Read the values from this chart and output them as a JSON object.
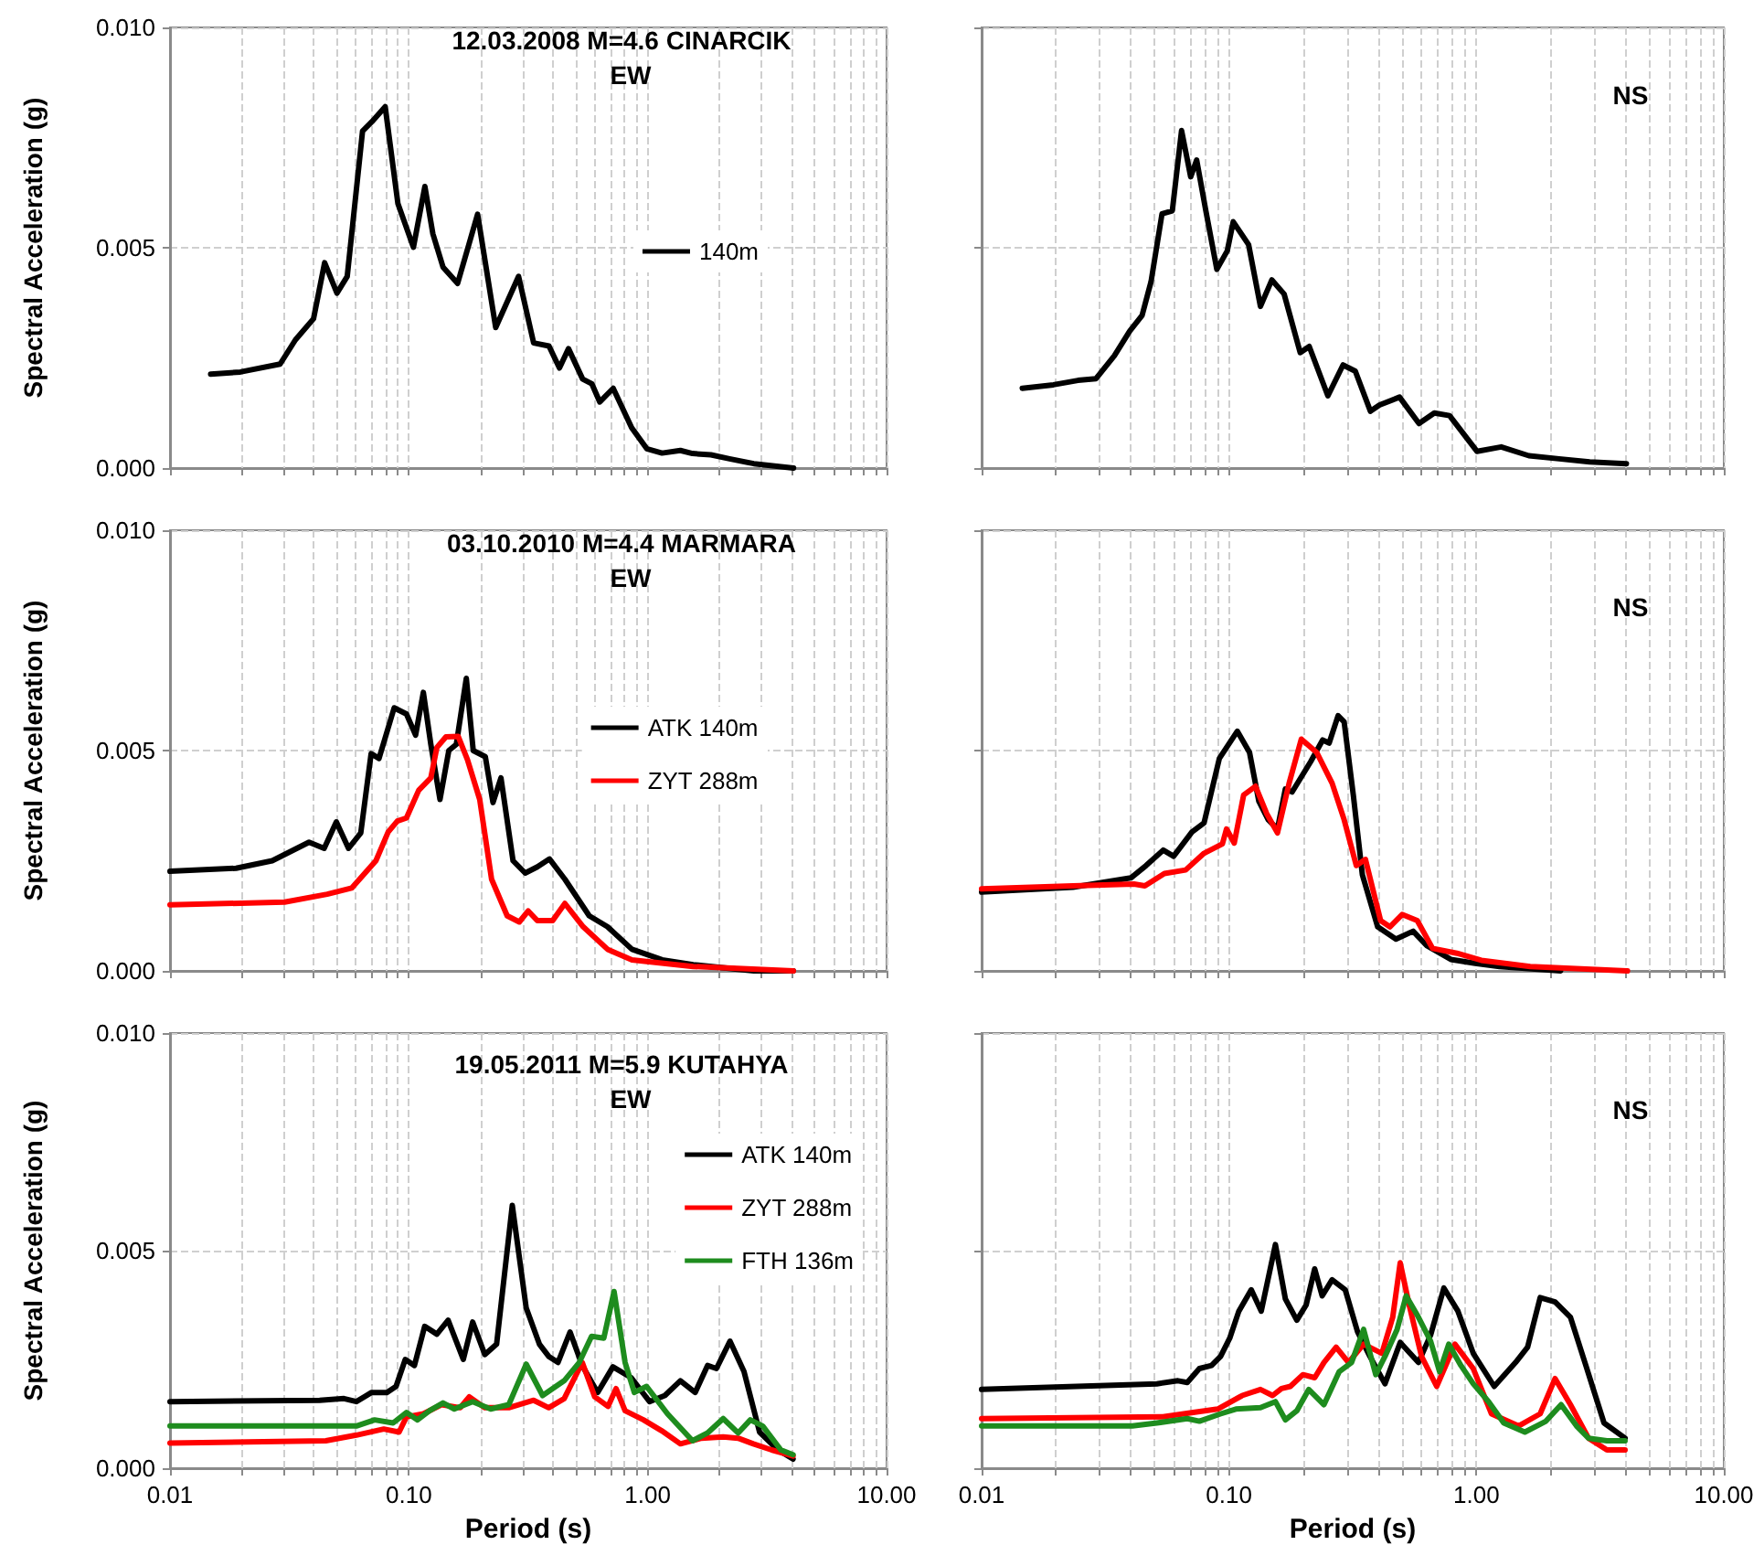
{
  "chart_data": [
    {
      "type": "line",
      "title": "12.03.2008 M=4.6 CINARCIK",
      "subtitle": "EW",
      "ylabel": "Spectral Acceleration (g)",
      "log": "x",
      "grid": true,
      "legend": "right",
      "marker": "none",
      "line_style": "solid",
      "tick_labels": "y",
      "xlim": [
        0.01,
        10
      ],
      "ylim": [
        0,
        0.01
      ],
      "xticks": [
        {
          "value": 0.01,
          "label": null
        },
        {
          "value": 0.02,
          "label": null
        },
        {
          "value": 0.03,
          "label": null
        },
        {
          "value": 0.04,
          "label": null
        },
        {
          "value": 0.05,
          "label": null
        },
        {
          "value": 0.06,
          "label": null
        },
        {
          "value": 0.07,
          "label": null
        },
        {
          "value": 0.08,
          "label": null
        },
        {
          "value": 0.09,
          "label": null
        },
        {
          "value": 0.1,
          "label": null
        },
        {
          "value": 0.2,
          "label": null
        },
        {
          "value": 0.3,
          "label": null
        },
        {
          "value": 0.4,
          "label": null
        },
        {
          "value": 0.5,
          "label": null
        },
        {
          "value": 0.6,
          "label": null
        },
        {
          "value": 0.7,
          "label": null
        },
        {
          "value": 0.8,
          "label": null
        },
        {
          "value": 0.9,
          "label": null
        },
        {
          "value": 1,
          "label": null
        },
        {
          "value": 2,
          "label": null
        },
        {
          "value": 3,
          "label": null
        },
        {
          "value": 4,
          "label": null
        },
        {
          "value": 5,
          "label": null
        },
        {
          "value": 6,
          "label": null
        },
        {
          "value": 7,
          "label": null
        },
        {
          "value": 8,
          "label": null
        },
        {
          "value": 9,
          "label": null
        },
        {
          "value": 10,
          "label": null
        }
      ],
      "yticks": [
        {
          "value": 0,
          "label": "0.000"
        },
        {
          "value": 0.005,
          "label": "0.005"
        },
        {
          "value": 0.01,
          "label": "0.010"
        }
      ],
      "series": [
        {
          "name": "140m",
          "color": "#000000",
          "x": [
            0.0148,
            0.0197,
            0.0289,
            0.0335,
            0.0399,
            0.0444,
            0.05,
            0.0552,
            0.064,
            0.07,
            0.0796,
            0.09,
            0.1045,
            0.1167,
            0.126,
            0.139,
            0.16,
            0.194,
            0.231,
            0.288,
            0.333,
            0.386,
            0.427,
            0.466,
            0.534,
            0.584,
            0.63,
            0.717,
            0.856,
            0.991,
            1.148,
            1.37,
            1.54,
            1.84,
            2.2,
            2.78,
            4.08
          ],
          "values": [
            0.00213,
            0.00218,
            0.00236,
            0.00291,
            0.00339,
            0.00466,
            0.00397,
            0.00435,
            0.00765,
            0.00786,
            0.0082,
            0.006,
            0.00501,
            0.00639,
            0.00532,
            0.00456,
            0.00419,
            0.00576,
            0.00319,
            0.00435,
            0.00284,
            0.00277,
            0.00227,
            0.00271,
            0.00202,
            0.00191,
            0.0015,
            0.00181,
            0.00092,
            0.00044,
            0.00034,
            0.0004,
            0.00033,
            0.0003,
            0.00021,
            0.0001,
            0.0
          ]
        }
      ]
    },
    {
      "type": "line",
      "title": "NS",
      "log": "x",
      "grid": true,
      "marker": "none",
      "line_style": "solid",
      "tick_labels": false,
      "xlim": [
        0.01,
        10
      ],
      "ylim": [
        0,
        0.01
      ],
      "xticks": [
        {
          "value": 0.01,
          "label": null
        },
        {
          "value": 0.02,
          "label": null
        },
        {
          "value": 0.03,
          "label": null
        },
        {
          "value": 0.04,
          "label": null
        },
        {
          "value": 0.05,
          "label": null
        },
        {
          "value": 0.06,
          "label": null
        },
        {
          "value": 0.07,
          "label": null
        },
        {
          "value": 0.08,
          "label": null
        },
        {
          "value": 0.09,
          "label": null
        },
        {
          "value": 0.1,
          "label": null
        },
        {
          "value": 0.2,
          "label": null
        },
        {
          "value": 0.3,
          "label": null
        },
        {
          "value": 0.4,
          "label": null
        },
        {
          "value": 0.5,
          "label": null
        },
        {
          "value": 0.6,
          "label": null
        },
        {
          "value": 0.7,
          "label": null
        },
        {
          "value": 0.8,
          "label": null
        },
        {
          "value": 0.9,
          "label": null
        },
        {
          "value": 1,
          "label": null
        },
        {
          "value": 2,
          "label": null
        },
        {
          "value": 3,
          "label": null
        },
        {
          "value": 4,
          "label": null
        },
        {
          "value": 5,
          "label": null
        },
        {
          "value": 6,
          "label": null
        },
        {
          "value": 7,
          "label": null
        },
        {
          "value": 8,
          "label": null
        },
        {
          "value": 9,
          "label": null
        },
        {
          "value": 10,
          "label": null
        }
      ],
      "yticks": [
        {
          "value": 0,
          "label": null
        },
        {
          "value": 0.005,
          "label": null
        },
        {
          "value": 0.01,
          "label": null
        }
      ],
      "series": [
        {
          "color": "#000000",
          "x": [
            0.0146,
            0.0195,
            0.0245,
            0.029,
            0.0344,
            0.0397,
            0.0445,
            0.0484,
            0.0536,
            0.059,
            0.0643,
            0.07,
            0.074,
            0.0806,
            0.0893,
            0.0984,
            0.104,
            0.12,
            0.134,
            0.149,
            0.167,
            0.194,
            0.211,
            0.251,
            0.289,
            0.324,
            0.373,
            0.406,
            0.489,
            0.586,
            0.676,
            0.779,
            1.005,
            1.26,
            1.63,
            2.16,
            2.87,
            4.04
          ],
          "values": [
            0.00181,
            0.00189,
            0.00199,
            0.00203,
            0.00255,
            0.00311,
            0.00346,
            0.00423,
            0.00577,
            0.00584,
            0.00766,
            0.00661,
            0.00699,
            0.00584,
            0.00451,
            0.00493,
            0.00559,
            0.00507,
            0.00367,
            0.00427,
            0.00395,
            0.00262,
            0.00276,
            0.00164,
            0.00234,
            0.0022,
            0.00129,
            0.00143,
            0.00161,
            0.00101,
            0.00125,
            0.00119,
            0.00038,
            0.00048,
            0.00028,
            0.00021,
            0.00014,
            0.0001
          ]
        }
      ]
    },
    {
      "type": "line",
      "title": "03.10.2010 M=4.4 MARMARA",
      "subtitle": "EW",
      "ylabel": "Spectral Acceleration (g)",
      "log": "x",
      "grid": true,
      "legend": "right",
      "marker": "none",
      "line_style": "solid",
      "tick_labels": "y",
      "xlim": [
        0.01,
        10
      ],
      "ylim": [
        0,
        0.01
      ],
      "xticks": [
        {
          "value": 0.01,
          "label": null
        },
        {
          "value": 0.02,
          "label": null
        },
        {
          "value": 0.03,
          "label": null
        },
        {
          "value": 0.04,
          "label": null
        },
        {
          "value": 0.05,
          "label": null
        },
        {
          "value": 0.06,
          "label": null
        },
        {
          "value": 0.07,
          "label": null
        },
        {
          "value": 0.08,
          "label": null
        },
        {
          "value": 0.09,
          "label": null
        },
        {
          "value": 0.1,
          "label": null
        },
        {
          "value": 0.2,
          "label": null
        },
        {
          "value": 0.3,
          "label": null
        },
        {
          "value": 0.4,
          "label": null
        },
        {
          "value": 0.5,
          "label": null
        },
        {
          "value": 0.6,
          "label": null
        },
        {
          "value": 0.7,
          "label": null
        },
        {
          "value": 0.8,
          "label": null
        },
        {
          "value": 0.9,
          "label": null
        },
        {
          "value": 1,
          "label": null
        },
        {
          "value": 2,
          "label": null
        },
        {
          "value": 3,
          "label": null
        },
        {
          "value": 4,
          "label": null
        },
        {
          "value": 5,
          "label": null
        },
        {
          "value": 6,
          "label": null
        },
        {
          "value": 7,
          "label": null
        },
        {
          "value": 8,
          "label": null
        },
        {
          "value": 9,
          "label": null
        },
        {
          "value": 10,
          "label": null
        }
      ],
      "yticks": [
        {
          "value": 0,
          "label": "0.000"
        },
        {
          "value": 0.005,
          "label": "0.005"
        },
        {
          "value": 0.01,
          "label": "0.010"
        }
      ],
      "series": [
        {
          "name": "ATK 140m",
          "color": "#000000",
          "x": [
            0.01,
            0.0189,
            0.0268,
            0.0382,
            0.0442,
            0.0497,
            0.0559,
            0.0629,
            0.0695,
            0.075,
            0.0868,
            0.0977,
            0.1067,
            0.115,
            0.1236,
            0.135,
            0.147,
            0.158,
            0.174,
            0.186,
            0.209,
            0.225,
            0.243,
            0.273,
            0.307,
            0.345,
            0.388,
            0.45,
            0.569,
            0.679,
            0.859,
            1.15,
            1.55,
            2.78,
            4.07
          ],
          "values": [
            0.00226,
            0.00233,
            0.0025,
            0.00292,
            0.00278,
            0.00338,
            0.00278,
            0.00313,
            0.00493,
            0.00482,
            0.00597,
            0.00583,
            0.00535,
            0.00632,
            0.00514,
            0.00389,
            0.005,
            0.00514,
            0.00664,
            0.005,
            0.00486,
            0.00382,
            0.00438,
            0.0025,
            0.00222,
            0.00236,
            0.00254,
            0.00208,
            0.00125,
            0.001,
            0.00049,
            0.00025,
            0.00014,
            0.0,
            0.0
          ]
        },
        {
          "name": "ZYT 288m",
          "color": "#ff0000",
          "x": [
            0.01,
            0.0302,
            0.0455,
            0.0576,
            0.0728,
            0.0819,
            0.0895,
            0.0977,
            0.11,
            0.1236,
            0.131,
            0.143,
            0.161,
            0.176,
            0.198,
            0.222,
            0.258,
            0.29,
            0.316,
            0.345,
            0.4,
            0.45,
            0.537,
            0.679,
            0.859,
            1.55,
            4.07
          ],
          "values": [
            0.0015,
            0.00156,
            0.00174,
            0.00188,
            0.0025,
            0.00315,
            0.0034,
            0.00347,
            0.0041,
            0.00438,
            0.00507,
            0.00531,
            0.00532,
            0.00479,
            0.00389,
            0.00208,
            0.00125,
            0.00111,
            0.00136,
            0.00114,
            0.00114,
            0.00153,
            0.001,
            0.00049,
            0.00025,
            0.0001,
            0.0
          ]
        }
      ]
    },
    {
      "type": "line",
      "title": "NS",
      "log": "x",
      "grid": true,
      "marker": "none",
      "line_style": "solid",
      "tick_labels": false,
      "xlim": [
        0.01,
        10
      ],
      "ylim": [
        0,
        0.01
      ],
      "xticks": [
        {
          "value": 0.01,
          "label": null
        },
        {
          "value": 0.02,
          "label": null
        },
        {
          "value": 0.03,
          "label": null
        },
        {
          "value": 0.04,
          "label": null
        },
        {
          "value": 0.05,
          "label": null
        },
        {
          "value": 0.06,
          "label": null
        },
        {
          "value": 0.07,
          "label": null
        },
        {
          "value": 0.08,
          "label": null
        },
        {
          "value": 0.09,
          "label": null
        },
        {
          "value": 0.1,
          "label": null
        },
        {
          "value": 0.2,
          "label": null
        },
        {
          "value": 0.3,
          "label": null
        },
        {
          "value": 0.4,
          "label": null
        },
        {
          "value": 0.5,
          "label": null
        },
        {
          "value": 0.6,
          "label": null
        },
        {
          "value": 0.7,
          "label": null
        },
        {
          "value": 0.8,
          "label": null
        },
        {
          "value": 0.9,
          "label": null
        },
        {
          "value": 1,
          "label": null
        },
        {
          "value": 2,
          "label": null
        },
        {
          "value": 3,
          "label": null
        },
        {
          "value": 4,
          "label": null
        },
        {
          "value": 5,
          "label": null
        },
        {
          "value": 6,
          "label": null
        },
        {
          "value": 7,
          "label": null
        },
        {
          "value": 8,
          "label": null
        },
        {
          "value": 9,
          "label": null
        },
        {
          "value": 10,
          "label": null
        }
      ],
      "yticks": [
        {
          "value": 0,
          "label": null
        },
        {
          "value": 0.005,
          "label": null
        },
        {
          "value": 0.01,
          "label": null
        }
      ],
      "series": [
        {
          "color": "#000000",
          "x": [
            0.01,
            0.0234,
            0.0401,
            0.0462,
            0.0542,
            0.0597,
            0.0708,
            0.0793,
            0.0914,
            0.108,
            0.121,
            0.132,
            0.144,
            0.157,
            0.169,
            0.18,
            0.214,
            0.239,
            0.254,
            0.276,
            0.292,
            0.318,
            0.346,
            0.399,
            0.473,
            0.555,
            0.628,
            0.788,
            0.989,
            1.24,
            2.19
          ],
          "values": [
            0.00179,
            0.0019,
            0.00211,
            0.00239,
            0.00274,
            0.0026,
            0.00315,
            0.00336,
            0.00482,
            0.00544,
            0.00496,
            0.00385,
            0.00343,
            0.00322,
            0.00413,
            0.00406,
            0.00475,
            0.00524,
            0.00517,
            0.00579,
            0.00565,
            0.00399,
            0.00218,
            0.001,
            0.00072,
            0.0009,
            0.00058,
            0.00026,
            0.00017,
            0.0001,
            0.0
          ]
        },
        {
          "color": "#ff0000",
          "x": [
            0.01,
            0.0234,
            0.0413,
            0.0457,
            0.0548,
            0.0668,
            0.0793,
            0.094,
            0.0977,
            0.105,
            0.1146,
            0.128,
            0.142,
            0.157,
            0.175,
            0.196,
            0.226,
            0.261,
            0.292,
            0.327,
            0.356,
            0.41,
            0.447,
            0.501,
            0.577,
            0.665,
            0.834,
            1.047,
            1.65,
            4.08
          ],
          "values": [
            0.00186,
            0.00193,
            0.00197,
            0.00193,
            0.00221,
            0.00229,
            0.00267,
            0.00288,
            0.00322,
            0.0029,
            0.00399,
            0.00419,
            0.00357,
            0.00313,
            0.00426,
            0.00526,
            0.00496,
            0.00426,
            0.00343,
            0.00239,
            0.00253,
            0.00114,
            0.001,
            0.00128,
            0.00114,
            0.00051,
            0.0004,
            0.00024,
            0.0001,
            0.0
          ]
        }
      ]
    },
    {
      "type": "line",
      "title": "19.05.2011 M=5.9 KUTAHYA",
      "subtitle": "EW",
      "xlabel": "Period (s)",
      "ylabel": "Spectral Acceleration (g)",
      "log": "x",
      "grid": true,
      "legend": "top right",
      "marker": "none",
      "line_style": "solid",
      "xlim": [
        0.01,
        10
      ],
      "ylim": [
        0,
        0.01
      ],
      "xticks": [
        {
          "value": 0.01,
          "label": "0.01"
        },
        {
          "value": 0.02,
          "label": null
        },
        {
          "value": 0.03,
          "label": null
        },
        {
          "value": 0.04,
          "label": null
        },
        {
          "value": 0.05,
          "label": null
        },
        {
          "value": 0.06,
          "label": null
        },
        {
          "value": 0.07,
          "label": null
        },
        {
          "value": 0.08,
          "label": null
        },
        {
          "value": 0.09,
          "label": null
        },
        {
          "value": 0.1,
          "label": "0.10"
        },
        {
          "value": 0.2,
          "label": null
        },
        {
          "value": 0.3,
          "label": null
        },
        {
          "value": 0.4,
          "label": null
        },
        {
          "value": 0.5,
          "label": null
        },
        {
          "value": 0.6,
          "label": null
        },
        {
          "value": 0.7,
          "label": null
        },
        {
          "value": 0.8,
          "label": null
        },
        {
          "value": 0.9,
          "label": null
        },
        {
          "value": 1,
          "label": "1.00"
        },
        {
          "value": 2,
          "label": null
        },
        {
          "value": 3,
          "label": null
        },
        {
          "value": 4,
          "label": null
        },
        {
          "value": 5,
          "label": null
        },
        {
          "value": 6,
          "label": null
        },
        {
          "value": 7,
          "label": null
        },
        {
          "value": 8,
          "label": null
        },
        {
          "value": 9,
          "label": null
        },
        {
          "value": 10,
          "label": "10.00"
        }
      ],
      "yticks": [
        {
          "value": 0,
          "label": "0.000"
        },
        {
          "value": 0.005,
          "label": "0.005"
        },
        {
          "value": 0.01,
          "label": "0.010"
        }
      ],
      "series": [
        {
          "name": "ATK 140m",
          "color": "#000000",
          "x": [
            0.01,
            0.0423,
            0.0535,
            0.0603,
            0.0698,
            0.0809,
            0.0884,
            0.0966,
            0.1055,
            0.1165,
            0.131,
            0.146,
            0.169,
            0.185,
            0.208,
            0.233,
            0.271,
            0.31,
            0.352,
            0.385,
            0.421,
            0.473,
            0.532,
            0.617,
            0.715,
            0.853,
            1.018,
            1.18,
            1.37,
            1.58,
            1.78,
            1.94,
            2.21,
            2.53,
            2.94,
            3.51,
            4.06
          ],
          "values": [
            0.00153,
            0.00156,
            0.0016,
            0.00153,
            0.00174,
            0.00174,
            0.00188,
            0.0025,
            0.00236,
            0.00326,
            0.00308,
            0.0034,
            0.0025,
            0.00336,
            0.00261,
            0.00285,
            0.00604,
            0.00368,
            0.00285,
            0.00257,
            0.00243,
            0.00313,
            0.00236,
            0.00174,
            0.00233,
            0.00208,
            0.00153,
            0.00167,
            0.00201,
            0.00174,
            0.00236,
            0.00229,
            0.00292,
            0.00222,
            0.00083,
            0.00042,
            0.00021
          ]
        },
        {
          "name": "ZYT 288m",
          "color": "#ff0000",
          "x": [
            0.01,
            0.0449,
            0.0603,
            0.0785,
            0.091,
            0.0977,
            0.115,
            0.137,
            0.164,
            0.179,
            0.208,
            0.262,
            0.333,
            0.385,
            0.447,
            0.532,
            0.6,
            0.682,
            0.737,
            0.804,
            0.96,
            1.145,
            1.37,
            1.68,
            2.07,
            2.39,
            2.77,
            3.3,
            4.06
          ],
          "values": [
            0.00058,
            0.00063,
            0.00076,
            0.0009,
            0.00083,
            0.00118,
            0.00125,
            0.00146,
            0.00139,
            0.00164,
            0.00139,
            0.00139,
            0.00156,
            0.00139,
            0.0016,
            0.00243,
            0.00164,
            0.00142,
            0.00183,
            0.00132,
            0.00111,
            0.00086,
            0.00056,
            0.00069,
            0.00072,
            0.00069,
            0.00056,
            0.00042,
            0.00028
          ]
        },
        {
          "name": "FTH 136m",
          "color": "#1e8c1e",
          "x": [
            0.01,
            0.0603,
            0.0719,
            0.0859,
            0.0977,
            0.1087,
            0.122,
            0.139,
            0.155,
            0.185,
            0.22,
            0.262,
            0.31,
            0.363,
            0.447,
            0.517,
            0.582,
            0.655,
            0.723,
            0.804,
            0.879,
            0.989,
            1.21,
            1.54,
            1.78,
            2.07,
            2.39,
            2.69,
            3.03,
            3.61,
            4.06
          ],
          "values": [
            0.00097,
            0.00097,
            0.00111,
            0.00104,
            0.00128,
            0.00111,
            0.00132,
            0.0015,
            0.00136,
            0.00153,
            0.00136,
            0.00146,
            0.00239,
            0.00167,
            0.00201,
            0.00243,
            0.00303,
            0.00299,
            0.00406,
            0.00243,
            0.00174,
            0.00188,
            0.00125,
            0.00063,
            0.00081,
            0.00114,
            0.00081,
            0.00111,
            0.00097,
            0.00042,
            0.00031
          ]
        }
      ]
    },
    {
      "type": "line",
      "title": "NS",
      "xlabel": "Period (s)",
      "log": "x",
      "grid": true,
      "marker": "none",
      "line_style": "solid",
      "tick_labels": "x",
      "xlim": [
        0.01,
        10
      ],
      "ylim": [
        0,
        0.01
      ],
      "xticks": [
        {
          "value": 0.01,
          "label": "0.01"
        },
        {
          "value": 0.02,
          "label": null
        },
        {
          "value": 0.03,
          "label": null
        },
        {
          "value": 0.04,
          "label": null
        },
        {
          "value": 0.05,
          "label": null
        },
        {
          "value": 0.06,
          "label": null
        },
        {
          "value": 0.07,
          "label": null
        },
        {
          "value": 0.08,
          "label": null
        },
        {
          "value": 0.09,
          "label": null
        },
        {
          "value": 0.1,
          "label": "0.10"
        },
        {
          "value": 0.2,
          "label": null
        },
        {
          "value": 0.3,
          "label": null
        },
        {
          "value": 0.4,
          "label": null
        },
        {
          "value": 0.5,
          "label": null
        },
        {
          "value": 0.6,
          "label": null
        },
        {
          "value": 0.7,
          "label": null
        },
        {
          "value": 0.8,
          "label": null
        },
        {
          "value": 0.9,
          "label": null
        },
        {
          "value": 1,
          "label": "1.00"
        },
        {
          "value": 2,
          "label": null
        },
        {
          "value": 3,
          "label": null
        },
        {
          "value": 4,
          "label": null
        },
        {
          "value": 5,
          "label": null
        },
        {
          "value": 6,
          "label": null
        },
        {
          "value": 7,
          "label": null
        },
        {
          "value": 8,
          "label": null
        },
        {
          "value": 9,
          "label": null
        },
        {
          "value": 10,
          "label": "10.00"
        }
      ],
      "yticks": [
        {
          "value": 0,
          "label": null
        },
        {
          "value": 0.005,
          "label": null
        },
        {
          "value": 0.01,
          "label": null
        }
      ],
      "series": [
        {
          "color": "#000000",
          "x": [
            0.01,
            0.0511,
            0.0622,
            0.0678,
            0.0759,
            0.085,
            0.0925,
            0.1007,
            0.1096,
            0.123,
            0.135,
            0.154,
            0.169,
            0.188,
            0.205,
            0.222,
            0.238,
            0.261,
            0.295,
            0.331,
            0.371,
            0.427,
            0.492,
            0.583,
            0.653,
            0.739,
            0.842,
            0.971,
            1.18,
            1.44,
            1.61,
            1.81,
            2.08,
            2.4,
            2.77,
            3.28,
            3.99
          ],
          "values": [
            0.00181,
            0.00194,
            0.00201,
            0.00197,
            0.00229,
            0.00236,
            0.00257,
            0.00299,
            0.00361,
            0.0041,
            0.00361,
            0.00514,
            0.00389,
            0.0034,
            0.00375,
            0.00458,
            0.00396,
            0.00433,
            0.0041,
            0.00313,
            0.00257,
            0.00194,
            0.00289,
            0.00243,
            0.00306,
            0.00414,
            0.00361,
            0.00264,
            0.00188,
            0.00243,
            0.00278,
            0.00392,
            0.00382,
            0.00347,
            0.00236,
            0.00104,
            0.00069
          ]
        },
        {
          "color": "#ff0000",
          "x": [
            0.01,
            0.0541,
            0.0717,
            0.09,
            0.113,
            0.134,
            0.15,
            0.163,
            0.177,
            0.199,
            0.222,
            0.242,
            0.271,
            0.304,
            0.35,
            0.415,
            0.459,
            0.492,
            0.535,
            0.6,
            0.691,
            0.819,
            0.971,
            1.15,
            1.48,
            1.81,
            2.08,
            2.4,
            2.84,
            3.37,
            3.99
          ],
          "values": [
            0.00114,
            0.00118,
            0.00128,
            0.00136,
            0.00167,
            0.00181,
            0.00167,
            0.00183,
            0.00188,
            0.00215,
            0.00208,
            0.00243,
            0.00278,
            0.00243,
            0.00285,
            0.00264,
            0.00347,
            0.00472,
            0.00375,
            0.00257,
            0.00188,
            0.00285,
            0.00229,
            0.00125,
            0.00097,
            0.00125,
            0.00206,
            0.00146,
            0.00069,
            0.00042,
            0.00042
          ]
        },
        {
          "color": "#1e8c1e",
          "x": [
            0.01,
            0.0407,
            0.0511,
            0.0678,
            0.0759,
            0.0925,
            0.1066,
            0.134,
            0.154,
            0.169,
            0.188,
            0.21,
            0.242,
            0.279,
            0.313,
            0.35,
            0.392,
            0.427,
            0.478,
            0.52,
            0.583,
            0.653,
            0.71,
            0.773,
            0.866,
            0.971,
            1.12,
            1.29,
            1.57,
            1.91,
            2.2,
            2.54,
            2.84,
            3.37,
            3.99
          ],
          "values": [
            0.00097,
            0.00097,
            0.00104,
            0.00114,
            0.00108,
            0.00125,
            0.00136,
            0.00139,
            0.00153,
            0.00111,
            0.00132,
            0.00181,
            0.00146,
            0.00222,
            0.00243,
            0.00319,
            0.00215,
            0.00257,
            0.00319,
            0.00396,
            0.00347,
            0.00292,
            0.00222,
            0.00285,
            0.00236,
            0.00194,
            0.00153,
            0.00104,
            0.00083,
            0.00108,
            0.00146,
            0.00097,
            0.00069,
            0.00063,
            0.00063
          ]
        }
      ]
    }
  ]
}
